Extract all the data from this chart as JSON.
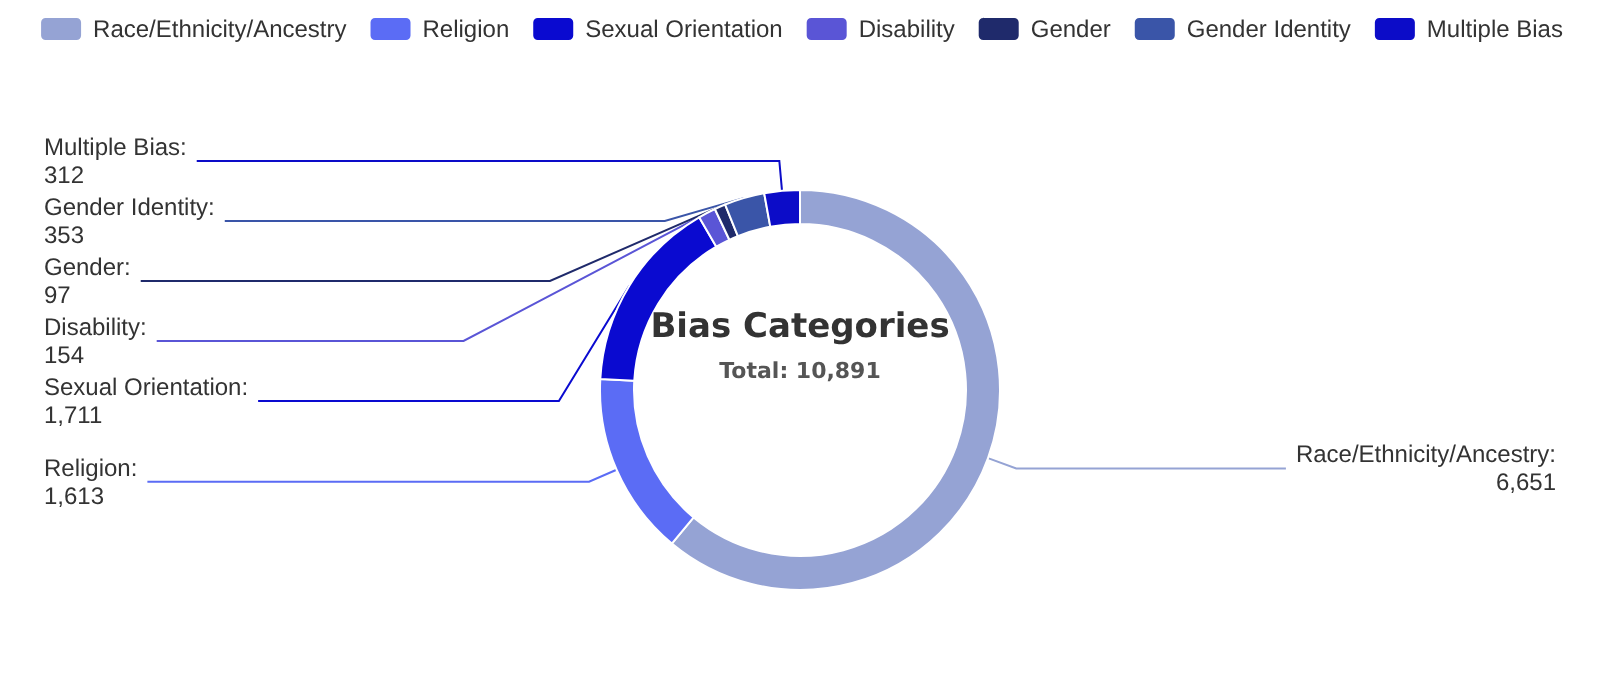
{
  "chart_data": {
    "type": "donut",
    "title": "Bias Categories",
    "subtitle": "Total: 10,891",
    "categories": [
      "Race/Ethnicity/Ancestry",
      "Religion",
      "Sexual Orientation",
      "Disability",
      "Gender",
      "Gender Identity",
      "Multiple Bias"
    ],
    "values": [
      6651,
      1613,
      1711,
      154,
      97,
      353,
      312
    ],
    "colors": [
      "#95a3d4",
      "#5b6cf5",
      "#0a0ad0",
      "#5a55d6",
      "#1f2a6b",
      "#3a55a8",
      "#0c0cc8"
    ],
    "value_labels": [
      "Race/Ethnicity/Ancestry:\n6,651",
      "Religion:\n1,613",
      "Sexual Orientation:\n1,711",
      "Disability:\n154",
      "Gender:\n97",
      "Gender Identity:\n353",
      "Multiple Bias:\n312"
    ],
    "legend": "top"
  }
}
